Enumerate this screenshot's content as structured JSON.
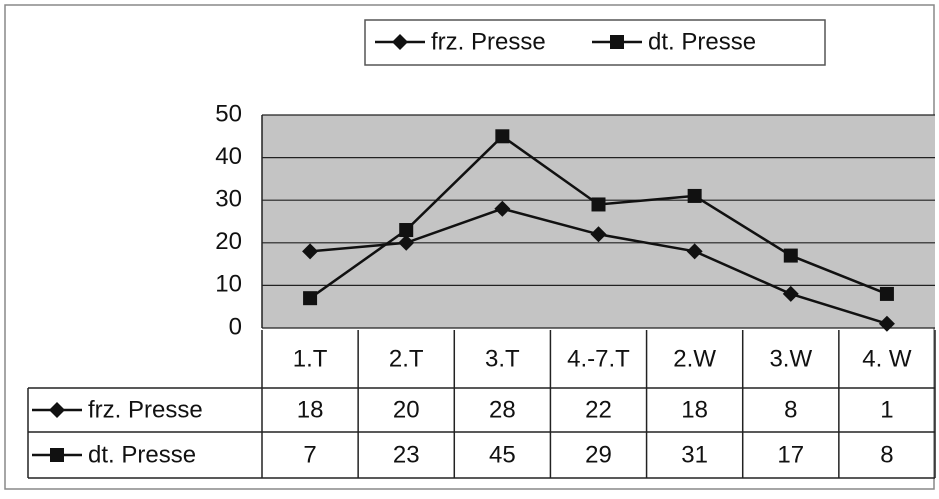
{
  "chart_data": {
    "type": "line",
    "categories": [
      "1.T",
      "2.T",
      "3.T",
      "4.-7.T",
      "2.W",
      "3.W",
      "4. W"
    ],
    "series": [
      {
        "name": "frz. Presse",
        "color": "#111111",
        "marker": "diamond",
        "values": [
          18,
          20,
          28,
          22,
          18,
          8,
          1
        ]
      },
      {
        "name": "dt. Presse",
        "color": "#111111",
        "marker": "square",
        "values": [
          7,
          23,
          45,
          29,
          31,
          17,
          8
        ]
      }
    ],
    "ylim": [
      0,
      50
    ],
    "yticks": [
      0,
      10,
      20,
      30,
      40,
      50
    ],
    "grid": true,
    "legend": "top",
    "data_table": true
  }
}
